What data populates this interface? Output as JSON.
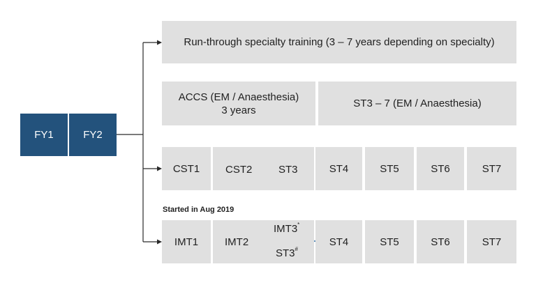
{
  "foundation": [
    "FY1",
    "FY2"
  ],
  "runthrough": "Run-through specialty training (3 – 7 years depending on specialty)",
  "accs": {
    "line1": "ACCS (EM / Anaesthesia)",
    "line2": "3 years"
  },
  "st_accs": "ST3 – 7 (EM / Anaesthesia)",
  "cst_row": [
    "CST1",
    "CST2",
    "ST3",
    "ST4",
    "ST5",
    "ST6",
    "ST7"
  ],
  "imt_note": "Started in Aug 2019",
  "imt_row": [
    "IMT1",
    "IMT2",
    "ST4",
    "ST5",
    "ST6",
    "ST7"
  ],
  "imt_branch": {
    "upper": "IMT3",
    "upper_mark": "*",
    "lower": "ST3",
    "lower_mark": "#"
  },
  "colors": {
    "foundation": "#23527c",
    "box": "#e0e0e0",
    "connector": "#2a2a2a",
    "arrow": "#2b6ca3"
  }
}
